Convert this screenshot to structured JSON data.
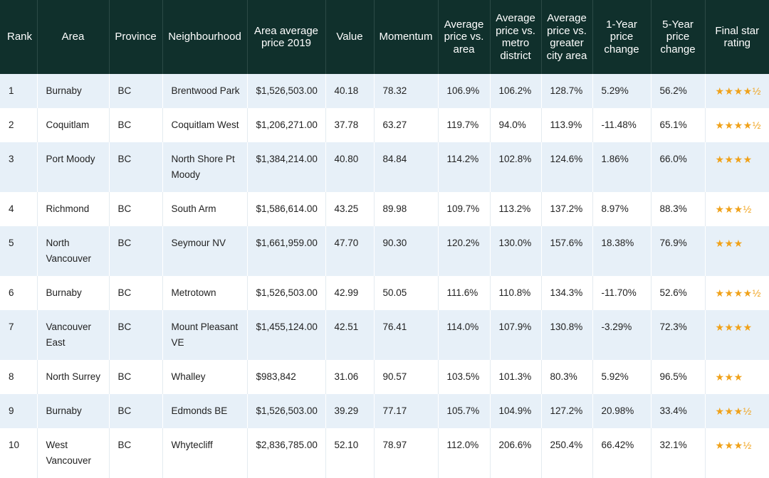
{
  "columns": [
    "Rank",
    "Area",
    "Province",
    "Neighbourhood",
    "Area average price 2019",
    "Value",
    "Momentum",
    "Average price vs. area",
    "Average price vs. metro district",
    "Average price vs. greater city area",
    "1-Year price change",
    "5-Year price change",
    "Final star rating"
  ],
  "rows": [
    {
      "rank": "1",
      "area": "Burnaby",
      "province": "BC",
      "neighbourhood": "Brentwood Park",
      "avg_price": "$1,526,503.00",
      "value": "40.18",
      "momentum": "78.32",
      "vs_area": "106.9%",
      "vs_metro": "106.2%",
      "vs_city": "128.7%",
      "change_1y": "5.29%",
      "change_5y": "56.2%",
      "rating": "★★★★½"
    },
    {
      "rank": "2",
      "area": "Coquitlam",
      "province": "BC",
      "neighbourhood": "Coquitlam West",
      "avg_price": "$1,206,271.00",
      "value": "37.78",
      "momentum": "63.27",
      "vs_area": "119.7%",
      "vs_metro": "94.0%",
      "vs_city": "113.9%",
      "change_1y": "-11.48%",
      "change_5y": "65.1%",
      "rating": "★★★★½"
    },
    {
      "rank": "3",
      "area": "Port Moody",
      "province": "BC",
      "neighbourhood": "North Shore Pt Moody",
      "avg_price": "$1,384,214.00",
      "value": "40.80",
      "momentum": "84.84",
      "vs_area": "114.2%",
      "vs_metro": "102.8%",
      "vs_city": "124.6%",
      "change_1y": "1.86%",
      "change_5y": "66.0%",
      "rating": "★★★★"
    },
    {
      "rank": "4",
      "area": "Richmond",
      "province": "BC",
      "neighbourhood": "South Arm",
      "avg_price": "$1,586,614.00",
      "value": "43.25",
      "momentum": "89.98",
      "vs_area": "109.7%",
      "vs_metro": "113.2%",
      "vs_city": "137.2%",
      "change_1y": "8.97%",
      "change_5y": "88.3%",
      "rating": "★★★½"
    },
    {
      "rank": "5",
      "area": "North Vancouver",
      "province": "BC",
      "neighbourhood": "Seymour NV",
      "avg_price": "$1,661,959.00",
      "value": "47.70",
      "momentum": "90.30",
      "vs_area": "120.2%",
      "vs_metro": "130.0%",
      "vs_city": "157.6%",
      "change_1y": "18.38%",
      "change_5y": "76.9%",
      "rating": "★★★"
    },
    {
      "rank": "6",
      "area": "Burnaby",
      "province": "BC",
      "neighbourhood": "Metrotown",
      "avg_price": "$1,526,503.00",
      "value": "42.99",
      "momentum": "50.05",
      "vs_area": "111.6%",
      "vs_metro": "110.8%",
      "vs_city": "134.3%",
      "change_1y": "-11.70%",
      "change_5y": "52.6%",
      "rating": "★★★★½"
    },
    {
      "rank": "7",
      "area": "Vancouver East",
      "province": "BC",
      "neighbourhood": "Mount Pleasant VE",
      "avg_price": "$1,455,124.00",
      "value": "42.51",
      "momentum": "76.41",
      "vs_area": "114.0%",
      "vs_metro": "107.9%",
      "vs_city": "130.8%",
      "change_1y": "-3.29%",
      "change_5y": "72.3%",
      "rating": "★★★★"
    },
    {
      "rank": "8",
      "area": "North Surrey",
      "province": "BC",
      "neighbourhood": "Whalley",
      "avg_price": "$983,842",
      "value": "31.06",
      "momentum": "90.57",
      "vs_area": "103.5%",
      "vs_metro": "101.3%",
      "vs_city": "80.3%",
      "change_1y": "5.92%",
      "change_5y": "96.5%",
      "rating": "★★★"
    },
    {
      "rank": "9",
      "area": "Burnaby",
      "province": "BC",
      "neighbourhood": "Edmonds BE",
      "avg_price": "$1,526,503.00",
      "value": "39.29",
      "momentum": "77.17",
      "vs_area": "105.7%",
      "vs_metro": "104.9%",
      "vs_city": "127.2%",
      "change_1y": "20.98%",
      "change_5y": "33.4%",
      "rating": "★★★½"
    },
    {
      "rank": "10",
      "area": "West Vancouver",
      "province": "BC",
      "neighbourhood": "Whytecliff",
      "avg_price": "$2,836,785.00",
      "value": "52.10",
      "momentum": "78.97",
      "vs_area": "112.0%",
      "vs_metro": "206.6%",
      "vs_city": "250.4%",
      "change_1y": "66.42%",
      "change_5y": "32.1%",
      "rating": "★★★½"
    }
  ],
  "colors": {
    "header_bg": "#10302c",
    "header_text": "#ffffff",
    "row_alt_bg": "#e7f0f8",
    "star": "#f0a21a"
  }
}
